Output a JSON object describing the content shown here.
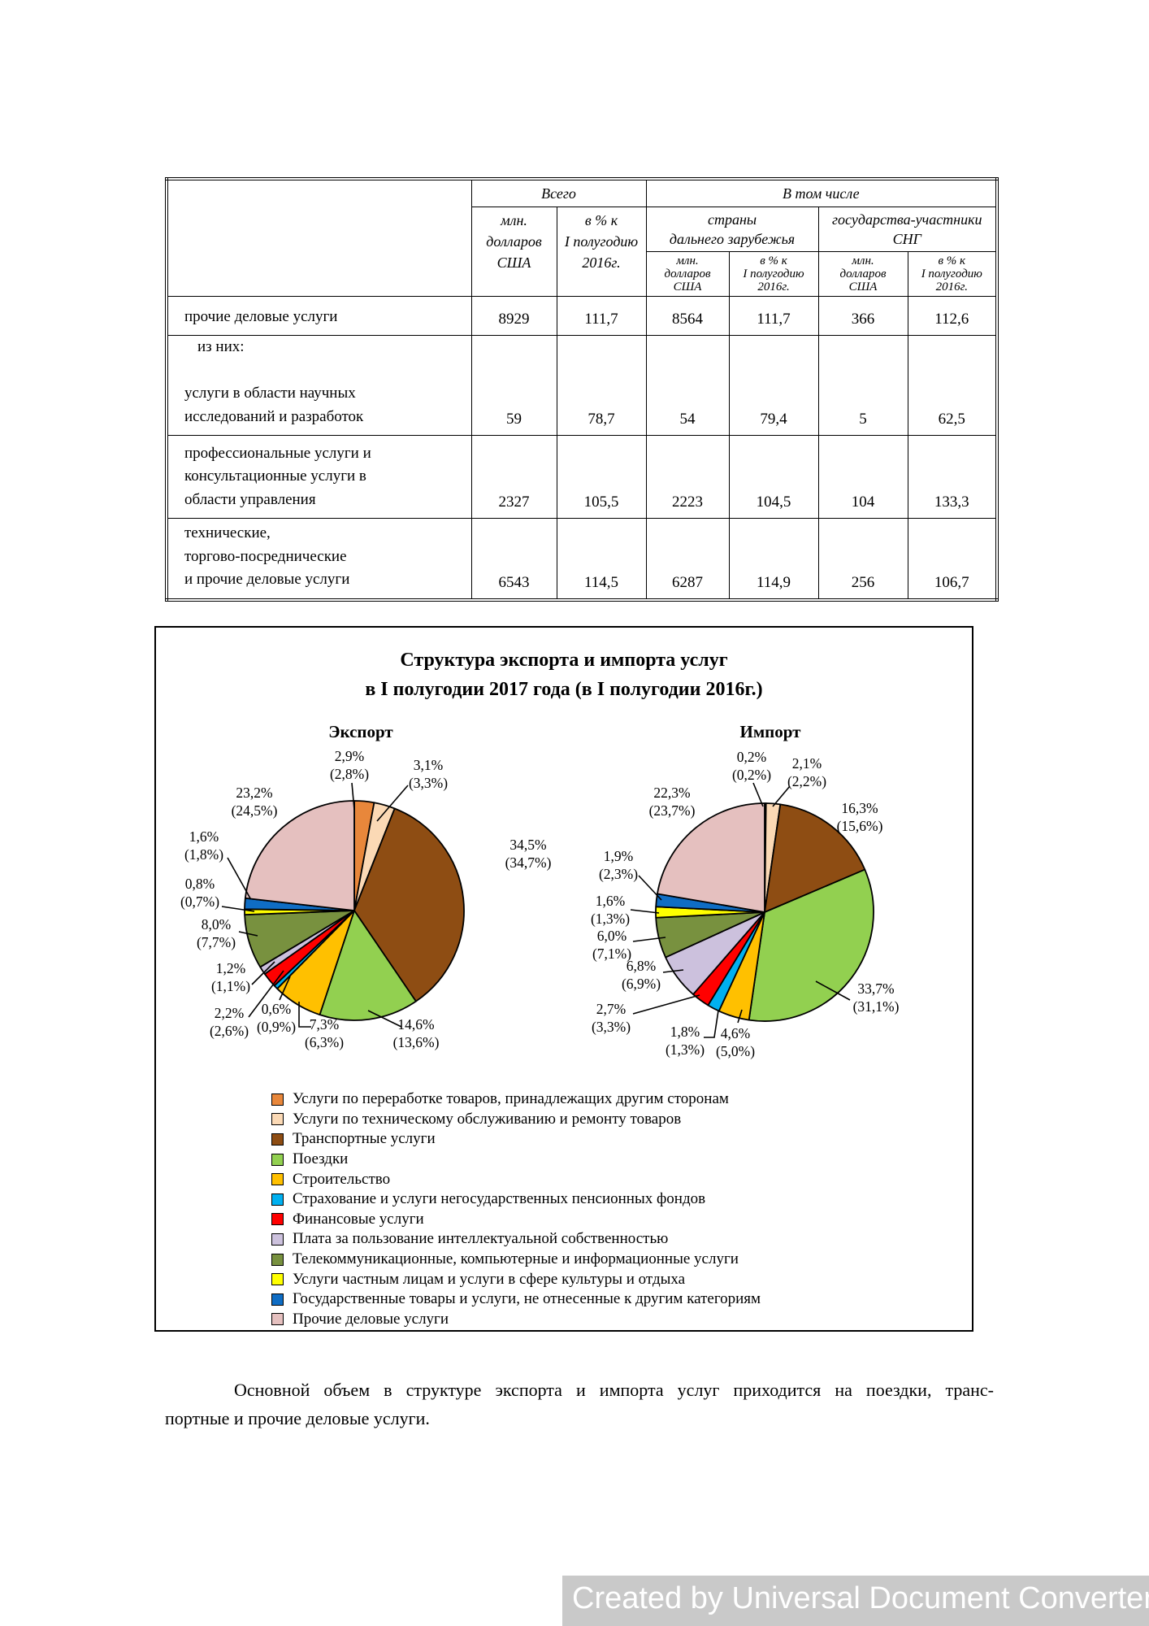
{
  "table": {
    "header": {
      "total": "Всего",
      "including": "В том числе",
      "mln_usd": "млн.\nдолларов\nСША",
      "pct_prev": "в % к\nI полугодию\n2016г.",
      "far_abroad": "страны\nдальнего зарубежья",
      "cis": "государства-участники\nСНГ"
    },
    "rows": [
      {
        "label_lines": [
          "прочие деловые услуги"
        ],
        "values": [
          "8929",
          "111,7",
          "8564",
          "111,7",
          "366",
          "112,6"
        ]
      },
      {
        "label_lines": [
          "из них:",
          "",
          "услуги в области научных",
          "исследований и разработок"
        ],
        "values": [
          "59",
          "78,7",
          "54",
          "79,4",
          "5",
          "62,5"
        ]
      },
      {
        "label_lines": [
          "профессиональные услуги и",
          "консультационные услуги в",
          "области управления"
        ],
        "values": [
          "2327",
          "105,5",
          "2223",
          "104,5",
          "104",
          "133,3"
        ]
      },
      {
        "label_lines": [
          "технические,",
          "торгово-посреднические",
          "и прочие деловые услуги"
        ],
        "values": [
          "6543",
          "114,5",
          "6287",
          "114,9",
          "256",
          "106,7"
        ]
      }
    ]
  },
  "chart_data": {
    "type": "pie",
    "title": "Структура экспорта и импорта услуг\nв I полугодии 2017 года (в I полугодии 2016г.)",
    "legend_position": "bottom",
    "label_format": "value% (previous year % in parentheses)",
    "categories": [
      "Услуги по переработке товаров, принадлежащих другим сторонам",
      "Услуги по техническому обслуживанию и ремонту товаров",
      "Транспортные услуги",
      "Поездки",
      "Строительство",
      "Страхование и услуги негосударственных пенсионных фондов",
      "Финансовые услуги",
      "Плата за пользование интеллектуальной собственностью",
      "Телекоммуникационные, компьютерные и информационные услуги",
      "Услуги частным лицам и услуги в сфере культуры и отдыха",
      "Государственные товары и услуги, не отнесенные к другим категориям",
      "Прочие деловые услуги"
    ],
    "colors": [
      "#E8873B",
      "#FBD9B5",
      "#8E4D13",
      "#92D050",
      "#FFC000",
      "#00B0F0",
      "#FF0000",
      "#CCC1DD",
      "#78913F",
      "#FFFF00",
      "#0F6DC4",
      "#E5C0BF"
    ],
    "series": [
      {
        "name": "Экспорт",
        "values": [
          2.9,
          3.1,
          34.5,
          14.6,
          7.3,
          0.6,
          2.2,
          1.2,
          8.0,
          0.8,
          1.6,
          23.2
        ],
        "prev_values": [
          2.8,
          3.3,
          34.7,
          13.6,
          6.3,
          0.9,
          2.6,
          1.1,
          7.7,
          0.7,
          1.8,
          24.5
        ]
      },
      {
        "name": "Импорт",
        "values": [
          0.2,
          2.1,
          16.3,
          33.7,
          4.6,
          1.8,
          2.7,
          6.8,
          6.0,
          1.6,
          1.9,
          22.3
        ],
        "prev_values": [
          0.2,
          2.2,
          15.6,
          31.1,
          5.0,
          1.3,
          3.3,
          6.9,
          7.1,
          1.3,
          2.3,
          23.7
        ]
      }
    ]
  },
  "paragraph": {
    "lines": [
      "Основной объем в структуре экспорта и импорта услуг приходится на поездки, транс-",
      "портные и прочие деловые услуги."
    ]
  },
  "watermark": "Created by Universal Document Converter"
}
